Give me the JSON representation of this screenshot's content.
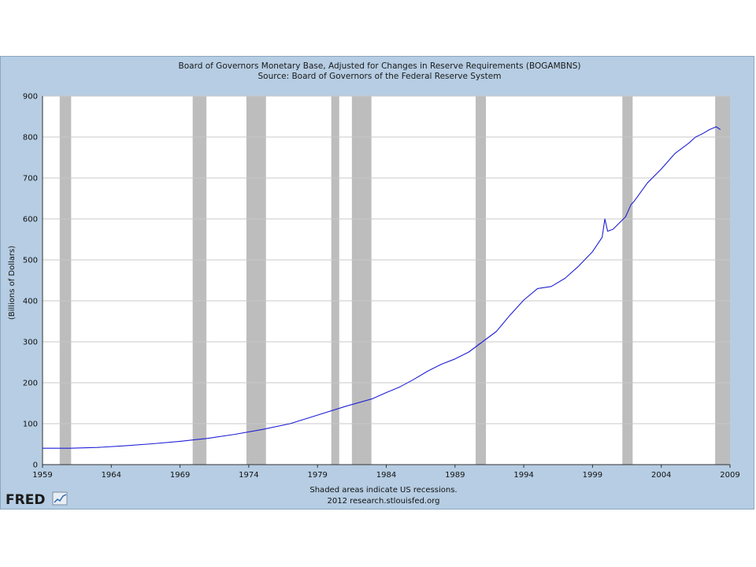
{
  "chart_data": {
    "type": "line",
    "title": "Board of Governors Monetary Base, Adjusted for Changes in Reserve Requirements (BOGAMBNS)",
    "subtitle": "Source: Board of Governors of the Federal Reserve System",
    "ylabel": "(Billions of Dollars)",
    "xlabel": "",
    "xlim": [
      1959,
      2009
    ],
    "ylim": [
      0,
      900
    ],
    "x_ticks": [
      "1959",
      "1964",
      "1969",
      "1974",
      "1979",
      "1984",
      "1989",
      "1994",
      "1999",
      "2004",
      "2009"
    ],
    "y_ticks": [
      "0",
      "100",
      "200",
      "300",
      "400",
      "500",
      "600",
      "700",
      "800",
      "900"
    ],
    "grid": true,
    "recessions": [
      [
        1960.25,
        1961.08
      ],
      [
        1969.92,
        1970.92
      ],
      [
        1973.83,
        1975.25
      ],
      [
        1980.0,
        1980.58
      ],
      [
        1981.5,
        1982.92
      ],
      [
        1990.5,
        1991.25
      ],
      [
        2001.17,
        2001.92
      ],
      [
        2007.92,
        2009.0
      ]
    ],
    "series": [
      {
        "color": "#1f1fd6",
        "points": [
          [
            1959.0,
            40
          ],
          [
            1961.0,
            40
          ],
          [
            1963.0,
            42
          ],
          [
            1965.0,
            46
          ],
          [
            1967.0,
            51
          ],
          [
            1969.0,
            57
          ],
          [
            1971.0,
            64
          ],
          [
            1973.0,
            74
          ],
          [
            1975.0,
            86
          ],
          [
            1977.0,
            100
          ],
          [
            1979.0,
            121
          ],
          [
            1981.0,
            142
          ],
          [
            1983.0,
            161
          ],
          [
            1984.0,
            176
          ],
          [
            1985.0,
            190
          ],
          [
            1986.0,
            208
          ],
          [
            1987.0,
            228
          ],
          [
            1988.0,
            245
          ],
          [
            1989.0,
            258
          ],
          [
            1990.0,
            275
          ],
          [
            1991.0,
            300
          ],
          [
            1992.0,
            325
          ],
          [
            1993.0,
            365
          ],
          [
            1994.0,
            402
          ],
          [
            1995.0,
            430
          ],
          [
            1996.0,
            435
          ],
          [
            1997.0,
            455
          ],
          [
            1998.0,
            485
          ],
          [
            1999.0,
            520
          ],
          [
            1999.7,
            555
          ],
          [
            1999.9,
            600
          ],
          [
            2000.1,
            570
          ],
          [
            2000.5,
            575
          ],
          [
            2001.0,
            592
          ],
          [
            2001.4,
            605
          ],
          [
            2001.8,
            635
          ],
          [
            2002.0,
            642
          ],
          [
            2003.0,
            688
          ],
          [
            2004.0,
            722
          ],
          [
            2005.0,
            760
          ],
          [
            2006.0,
            785
          ],
          [
            2006.5,
            800
          ],
          [
            2007.0,
            808
          ],
          [
            2007.5,
            818
          ],
          [
            2008.0,
            825
          ],
          [
            2008.3,
            818
          ]
        ]
      }
    ],
    "note_line1": "Shaded areas indicate US recessions.",
    "note_line2": "2012 research.stlouisfed.org"
  },
  "logo": {
    "text": "FRED"
  },
  "colors": {
    "frame_bg": "#b6cde3",
    "plot_bg": "#ffffff",
    "recession": "#bdbdbd",
    "grid": "#c8c8c8",
    "line": "#1f1fd6"
  }
}
